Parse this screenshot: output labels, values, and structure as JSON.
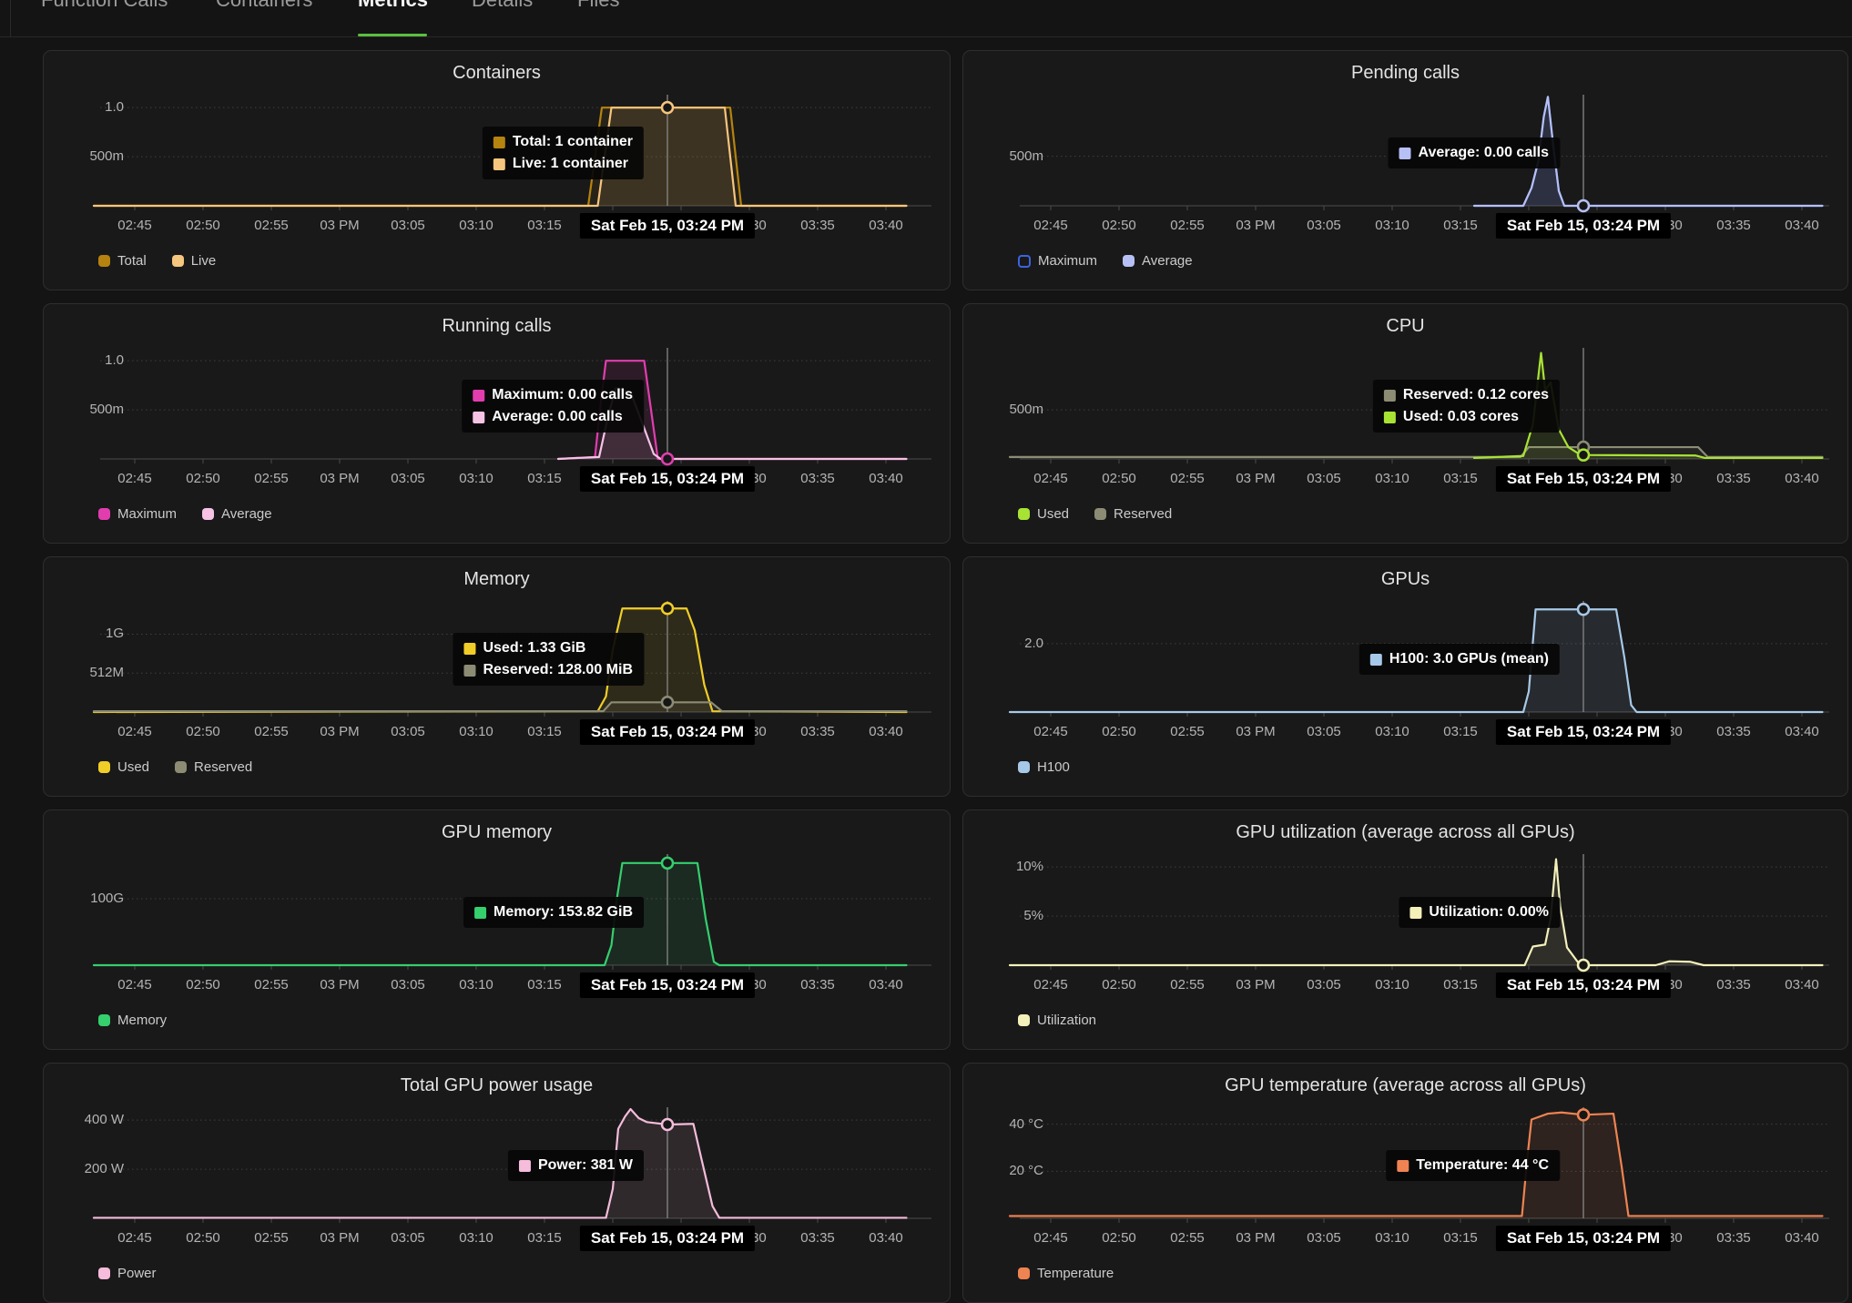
{
  "tabs": {
    "items": [
      {
        "label": "Function Calls",
        "active": false
      },
      {
        "label": "Containers",
        "active": false
      },
      {
        "label": "Metrics",
        "active": true
      },
      {
        "label": "Details",
        "active": false
      },
      {
        "label": "Files",
        "active": false
      }
    ],
    "active_underline_color": "#5bbf3f"
  },
  "cursor": {
    "time_minutes_after_2pm": 84,
    "axis_label": "Sat Feb 15, 03:24 PM"
  },
  "x_axis": {
    "unit": "minutes after 02:00 PM",
    "tick_minutes": [
      45,
      50,
      55,
      60,
      65,
      70,
      75,
      80,
      85,
      90,
      95,
      100
    ],
    "tick_labels": [
      "02:45",
      "02:50",
      "02:55",
      "03 PM",
      "03:05",
      "03:10",
      "03:15",
      "03:20",
      "03:25",
      "03:30",
      "03:35",
      "03:40"
    ]
  },
  "chart_data": [
    {
      "id": "containers",
      "type": "line",
      "title": "Containers",
      "y_max": 1.15,
      "y_ticks": [
        {
          "label": "1.0",
          "value": 1
        },
        {
          "label": "500m",
          "value": 0.5
        }
      ],
      "series": [
        {
          "name": "Total",
          "color": "#b5830f",
          "points": [
            [
              42,
              0
            ],
            [
              78.2,
              0
            ],
            [
              79.2,
              1
            ],
            [
              88.6,
              1
            ],
            [
              89.4,
              0
            ],
            [
              101.5,
              0
            ]
          ]
        },
        {
          "name": "Live",
          "color": "#f6c57e",
          "points": [
            [
              42,
              0
            ],
            [
              78.9,
              0
            ],
            [
              79.9,
              1
            ],
            [
              88.2,
              1
            ],
            [
              89.0,
              0
            ],
            [
              101.5,
              0
            ]
          ]
        }
      ],
      "tooltip": [
        {
          "text": "Total: 1 container",
          "color": "#b5830f"
        },
        {
          "text": "Live: 1 container",
          "color": "#f6c57e"
        }
      ],
      "legend": [
        {
          "label": "Total",
          "color": "#b5830f",
          "outline": false
        },
        {
          "label": "Live",
          "color": "#f6c57e",
          "outline": false
        }
      ],
      "markers": [
        {
          "value": 1,
          "color": "#f6c57e"
        }
      ]
    },
    {
      "id": "pending-calls",
      "type": "line",
      "title": "Pending calls",
      "y_max": 1.14,
      "y_ticks": [
        {
          "label": "500m",
          "value": 0.5
        }
      ],
      "series": [
        {
          "name": "Maximum",
          "color": "#3d63e0",
          "points": [
            [
              76,
              0
            ],
            [
              79.6,
              0
            ],
            [
              80.2,
              0.18
            ],
            [
              80.7,
              0.45
            ],
            [
              81.1,
              0.9
            ],
            [
              81.4,
              1.1
            ],
            [
              81.8,
              0.6
            ],
            [
              82.2,
              0.15
            ],
            [
              82.6,
              0
            ],
            [
              101.5,
              0
            ]
          ]
        },
        {
          "name": "Average",
          "color": "#b6c0f5",
          "points": [
            [
              76,
              0
            ],
            [
              79.6,
              0
            ],
            [
              80.2,
              0.18
            ],
            [
              80.7,
              0.45
            ],
            [
              81.1,
              0.9
            ],
            [
              81.4,
              1.1
            ],
            [
              81.8,
              0.6
            ],
            [
              82.2,
              0.15
            ],
            [
              82.6,
              0
            ],
            [
              101.5,
              0
            ]
          ]
        }
      ],
      "tooltip": [
        {
          "text": "Average: 0.00 calls",
          "color": "#b6c0f5"
        }
      ],
      "legend": [
        {
          "label": "Maximum",
          "color": "#3d63e0",
          "outline": true
        },
        {
          "label": "Average",
          "color": "#b6c0f5",
          "outline": false
        }
      ],
      "markers": [
        {
          "value": 0,
          "color": "#b6c0f5"
        }
      ]
    },
    {
      "id": "running-calls",
      "type": "line",
      "title": "Running calls",
      "y_max": 1.15,
      "y_ticks": [
        {
          "label": "1.0",
          "value": 1
        },
        {
          "label": "500m",
          "value": 0.5
        }
      ],
      "series": [
        {
          "name": "Maximum",
          "color": "#e23daf",
          "points": [
            [
              76,
              0
            ],
            [
              78.7,
              0.02
            ],
            [
              79.1,
              0.55
            ],
            [
              79.5,
              1
            ],
            [
              82.3,
              1
            ],
            [
              82.8,
              0.5
            ],
            [
              83.3,
              0
            ],
            [
              101.5,
              0
            ]
          ]
        },
        {
          "name": "Average",
          "color": "#f6c3e5",
          "points": [
            [
              76,
              0
            ],
            [
              79.0,
              0.02
            ],
            [
              79.6,
              0.4
            ],
            [
              80.2,
              0.72
            ],
            [
              81.3,
              0.68
            ],
            [
              82.2,
              0.35
            ],
            [
              83.0,
              0.05
            ],
            [
              83.5,
              0
            ],
            [
              101.5,
              0
            ]
          ]
        }
      ],
      "tooltip": [
        {
          "text": "Maximum: 0.00 calls",
          "color": "#e23daf"
        },
        {
          "text": "Average: 0.00 calls",
          "color": "#f6c3e5"
        }
      ],
      "legend": [
        {
          "label": "Maximum",
          "color": "#e23daf",
          "outline": false
        },
        {
          "label": "Average",
          "color": "#f6c3e5",
          "outline": false
        }
      ],
      "markers": [
        {
          "value": 0,
          "color": "#e23daf"
        }
      ]
    },
    {
      "id": "cpu",
      "type": "line",
      "title": "CPU",
      "y_max": 1.15,
      "y_ticks": [
        {
          "label": "500m",
          "value": 0.5
        }
      ],
      "series": [
        {
          "name": "Reserved",
          "color": "#8c8c75",
          "points": [
            [
              42,
              0.02
            ],
            [
              79.4,
              0.02
            ],
            [
              80.0,
              0.12
            ],
            [
              92.4,
              0.12
            ],
            [
              93.1,
              0.02
            ],
            [
              101.5,
              0.02
            ]
          ]
        },
        {
          "name": "Used",
          "color": "#a8e334",
          "points": [
            [
              76,
              0.01
            ],
            [
              79.6,
              0.03
            ],
            [
              80.3,
              0.35
            ],
            [
              80.9,
              1.08
            ],
            [
              81.2,
              0.7
            ],
            [
              81.6,
              0.78
            ],
            [
              82.2,
              0.3
            ],
            [
              82.9,
              0.12
            ],
            [
              83.8,
              0.04
            ],
            [
              92.2,
              0.035
            ],
            [
              92.9,
              0.01
            ],
            [
              101.5,
              0.01
            ]
          ]
        }
      ],
      "tooltip": [
        {
          "text": "Reserved: 0.12 cores",
          "color": "#8c8c75"
        },
        {
          "text": "Used: 0.03 cores",
          "color": "#a8e334"
        }
      ],
      "legend": [
        {
          "label": "Used",
          "color": "#a8e334",
          "outline": false
        },
        {
          "label": "Reserved",
          "color": "#8c8c75",
          "outline": false
        }
      ],
      "markers": [
        {
          "value": 0.12,
          "color": "#8c8c75"
        },
        {
          "value": 0.04,
          "color": "#a8e334"
        }
      ]
    },
    {
      "id": "memory",
      "type": "line",
      "title": "Memory",
      "y_max": 1.45,
      "y_ticks": [
        {
          "label": "1G",
          "value": 1
        },
        {
          "label": "512M",
          "value": 0.5
        }
      ],
      "series": [
        {
          "name": "Used",
          "color": "#f1ce27",
          "points": [
            [
              42,
              0
            ],
            [
              78.9,
              0.01
            ],
            [
              79.5,
              0.2
            ],
            [
              80.0,
              0.8
            ],
            [
              80.7,
              1.33
            ],
            [
              85.4,
              1.33
            ],
            [
              86.0,
              1.05
            ],
            [
              86.7,
              0.35
            ],
            [
              87.3,
              0.01
            ],
            [
              101.5,
              0
            ]
          ]
        },
        {
          "name": "Reserved",
          "color": "#8c8c75",
          "points": [
            [
              42,
              0.01
            ],
            [
              79.3,
              0.01
            ],
            [
              79.9,
              0.125
            ],
            [
              87.2,
              0.125
            ],
            [
              88.0,
              0.01
            ],
            [
              101.5,
              0.01
            ]
          ]
        }
      ],
      "tooltip": [
        {
          "text": "Used: 1.33 GiB",
          "color": "#f1ce27"
        },
        {
          "text": "Reserved: 128.00 MiB",
          "color": "#8c8c75"
        }
      ],
      "legend": [
        {
          "label": "Used",
          "color": "#f1ce27",
          "outline": false
        },
        {
          "label": "Reserved",
          "color": "#8c8c75",
          "outline": false
        }
      ],
      "markers": [
        {
          "value": 1.33,
          "color": "#f1ce27"
        },
        {
          "value": 0.125,
          "color": "#8c8c75"
        }
      ]
    },
    {
      "id": "gpus",
      "type": "line",
      "title": "GPUs",
      "y_max": 3.3,
      "y_ticks": [
        {
          "label": "2.0",
          "value": 2
        }
      ],
      "series": [
        {
          "name": "H100",
          "color": "#a7c9e8",
          "points": [
            [
              42,
              0
            ],
            [
              79.6,
              0
            ],
            [
              80.0,
              0.6
            ],
            [
              80.5,
              3
            ],
            [
              86.4,
              3
            ],
            [
              87.0,
              1.6
            ],
            [
              87.5,
              0.2
            ],
            [
              87.9,
              0
            ],
            [
              101.5,
              0
            ]
          ]
        }
      ],
      "tooltip": [
        {
          "text": "H100: 3.0 GPUs (mean)",
          "color": "#a7c9e8"
        }
      ],
      "legend": [
        {
          "label": "H100",
          "color": "#a7c9e8",
          "outline": false
        }
      ],
      "markers": [
        {
          "value": 3,
          "color": "#a7c9e8"
        }
      ]
    },
    {
      "id": "gpu-memory",
      "type": "line",
      "title": "GPU memory",
      "y_max": 170,
      "y_ticks": [
        {
          "label": "100G",
          "value": 100
        }
      ],
      "series": [
        {
          "name": "Memory",
          "color": "#35cf6e",
          "points": [
            [
              42,
              0
            ],
            [
              79.4,
              0
            ],
            [
              79.9,
              30
            ],
            [
              80.3,
              100
            ],
            [
              80.7,
              153.8
            ],
            [
              86.2,
              153.8
            ],
            [
              86.8,
              70
            ],
            [
              87.4,
              5
            ],
            [
              87.8,
              0
            ],
            [
              101.5,
              0
            ]
          ]
        }
      ],
      "tooltip": [
        {
          "text": "Memory: 153.82 GiB",
          "color": "#35cf6e"
        }
      ],
      "legend": [
        {
          "label": "Memory",
          "color": "#35cf6e",
          "outline": false
        }
      ],
      "markers": [
        {
          "value": 153.8,
          "color": "#35cf6e"
        }
      ]
    },
    {
      "id": "gpu-utilization",
      "type": "line",
      "title": "GPU utilization (average across all GPUs)",
      "y_max": 11.5,
      "y_ticks": [
        {
          "label": "10%",
          "value": 10
        },
        {
          "label": "5%",
          "value": 5
        }
      ],
      "series": [
        {
          "name": "Utilization",
          "color": "#f3f0ba",
          "points": [
            [
              42,
              0
            ],
            [
              79.7,
              0
            ],
            [
              80.3,
              1.9
            ],
            [
              81.2,
              2.1
            ],
            [
              81.6,
              4.8
            ],
            [
              82.0,
              10.8
            ],
            [
              82.3,
              6
            ],
            [
              82.8,
              1.8
            ],
            [
              83.6,
              0.3
            ],
            [
              84.1,
              0
            ],
            [
              89.3,
              0
            ],
            [
              90.3,
              0.4
            ],
            [
              91.8,
              0.35
            ],
            [
              92.8,
              0
            ],
            [
              101.5,
              0
            ]
          ]
        }
      ],
      "tooltip": [
        {
          "text": "Utilization: 0.00%",
          "color": "#f3f0ba"
        }
      ],
      "legend": [
        {
          "label": "Utilization",
          "color": "#f3f0ba",
          "outline": false
        }
      ],
      "markers": [
        {
          "value": 0,
          "color": "#f3f0ba"
        }
      ]
    },
    {
      "id": "gpu-power",
      "type": "line",
      "title": "Total GPU power usage",
      "y_max": 460,
      "y_ticks": [
        {
          "label": "400 W",
          "value": 400
        },
        {
          "label": "200 W",
          "value": 200
        }
      ],
      "series": [
        {
          "name": "Power",
          "color": "#f5bcdb",
          "points": [
            [
              42,
              2
            ],
            [
              79.5,
              2
            ],
            [
              80.0,
              120
            ],
            [
              80.4,
              365
            ],
            [
              80.9,
              415
            ],
            [
              81.3,
              445
            ],
            [
              81.9,
              408
            ],
            [
              82.5,
              392
            ],
            [
              84,
              382
            ],
            [
              85.9,
              385
            ],
            [
              86.5,
              240
            ],
            [
              87.3,
              50
            ],
            [
              87.8,
              2
            ],
            [
              101.5,
              2
            ]
          ]
        }
      ],
      "tooltip": [
        {
          "text": "Power: 381 W",
          "color": "#f5bcdb"
        }
      ],
      "legend": [
        {
          "label": "Power",
          "color": "#f5bcdb",
          "outline": false
        }
      ],
      "markers": [
        {
          "value": 382,
          "color": "#f5bcdb"
        }
      ]
    },
    {
      "id": "gpu-temperature",
      "type": "line",
      "title": "GPU temperature (average across all GPUs)",
      "y_max": 48,
      "y_ticks": [
        {
          "label": "40 °C",
          "value": 40
        },
        {
          "label": "20 °C",
          "value": 20
        }
      ],
      "series": [
        {
          "name": "Temperature",
          "color": "#ef8352",
          "points": [
            [
              42,
              1
            ],
            [
              79.5,
              1
            ],
            [
              79.9,
              26
            ],
            [
              80.2,
              42
            ],
            [
              81.4,
              44.5
            ],
            [
              82.4,
              45
            ],
            [
              84,
              44
            ],
            [
              86.2,
              44.5
            ],
            [
              86.8,
              22
            ],
            [
              87.3,
              1
            ],
            [
              101.5,
              1
            ]
          ]
        }
      ],
      "tooltip": [
        {
          "text": "Temperature: 44 °C",
          "color": "#ef8352"
        }
      ],
      "legend": [
        {
          "label": "Temperature",
          "color": "#ef8352",
          "outline": false
        }
      ],
      "markers": [
        {
          "value": 44,
          "color": "#ef8352"
        }
      ]
    }
  ]
}
